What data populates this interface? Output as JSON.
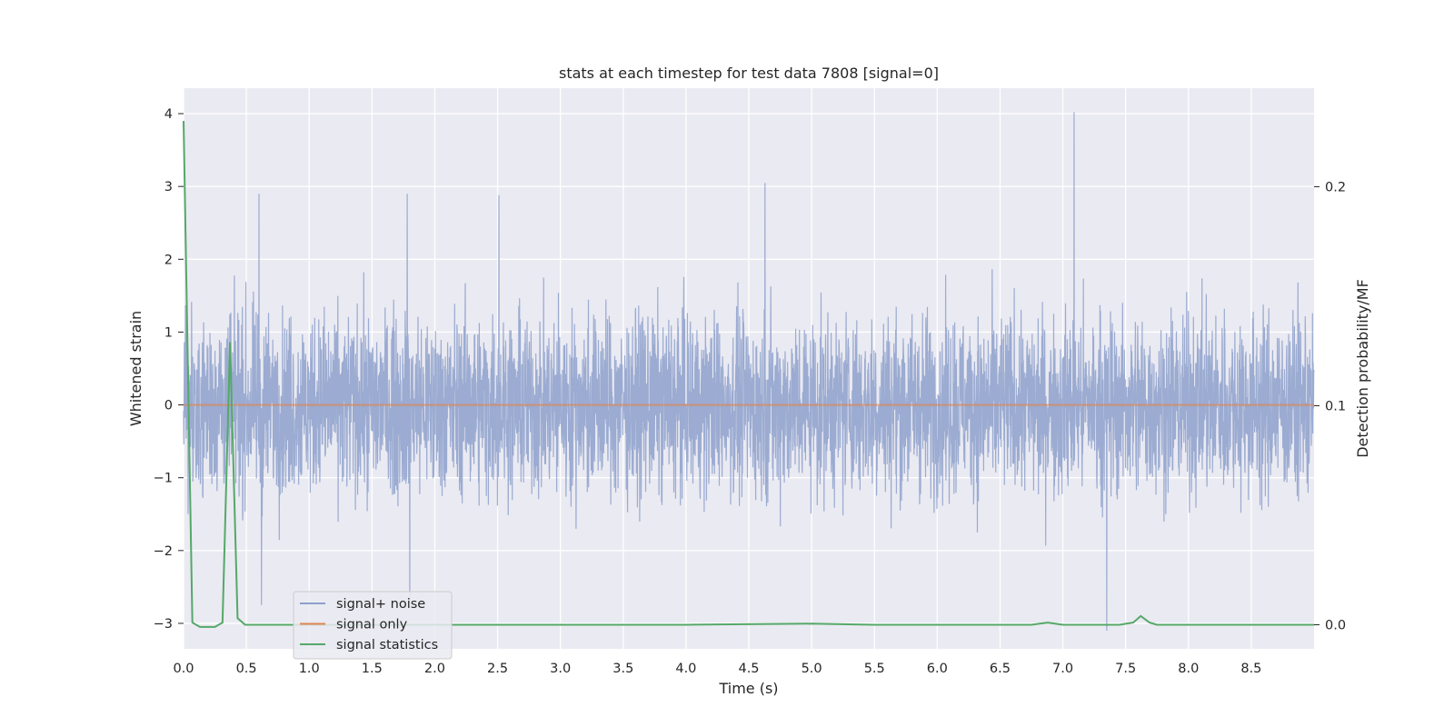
{
  "chart_data": {
    "type": "line",
    "title": "stats at each timestep for test data 7808 [signal=0]",
    "xlabel": "Time (s)",
    "ylabel": "Whitened strain",
    "y2label": "Detection probability/MF",
    "xlim": [
      0,
      9
    ],
    "ylim": [
      -3.35,
      4.35
    ],
    "y2lim": [
      -0.011,
      0.245
    ],
    "xticks": [
      "0.0",
      "0.5",
      "1.0",
      "1.5",
      "2.0",
      "2.5",
      "3.0",
      "3.5",
      "4.0",
      "4.5",
      "5.0",
      "5.5",
      "6.0",
      "6.5",
      "7.0",
      "7.5",
      "8.0",
      "8.5"
    ],
    "yticks": [
      "−3",
      "−2",
      "−1",
      "0",
      "1",
      "2",
      "3",
      "4"
    ],
    "y2ticks": [
      "0.0",
      "0.1",
      "0.2"
    ],
    "grid": true,
    "legend_position": "lower-left",
    "colors": {
      "signal_noise": "#8da0cb",
      "signal_only": "#dd8452",
      "statistics": "#55a868",
      "axes_bg": "#eaeaf2"
    },
    "series": [
      {
        "name": "signal+ noise",
        "axis": "left",
        "description_values": "whitened noise, roughly symmetric about 0, typical range ±2, extremes +4.0 near t=7.09 s and −3.1 near t=7.35 s",
        "peaks": [
          {
            "x": 0.6,
            "y": 2.9
          },
          {
            "x": 1.78,
            "y": 2.9
          },
          {
            "x": 2.51,
            "y": 2.88
          },
          {
            "x": 4.63,
            "y": 3.05
          },
          {
            "x": 7.09,
            "y": 4.02
          },
          {
            "x": 7.35,
            "y": -3.1
          },
          {
            "x": 1.8,
            "y": -2.7
          },
          {
            "x": 0.62,
            "y": -2.75
          }
        ]
      },
      {
        "name": "signal only",
        "axis": "left",
        "x": [
          0,
          9
        ],
        "y": [
          0,
          0
        ]
      },
      {
        "name": "signal statistics",
        "axis": "right",
        "x": [
          0.0,
          0.07,
          0.13,
          0.25,
          0.31,
          0.37,
          0.43,
          0.49,
          1.0,
          2.0,
          3.0,
          4.0,
          5.0,
          5.5,
          6.0,
          6.75,
          6.88,
          7.0,
          7.45,
          7.56,
          7.62,
          7.69,
          7.75,
          8.0,
          9.0
        ],
        "y": [
          0.23,
          0.001,
          -0.001,
          -0.001,
          0.001,
          0.129,
          0.003,
          0.0,
          0.0,
          0.0,
          0.0,
          0.0,
          0.0005,
          0.0,
          0.0,
          0.0,
          0.001,
          0.0,
          0.0,
          0.001,
          0.004,
          0.001,
          0.0,
          0.0,
          0.0
        ]
      }
    ]
  }
}
